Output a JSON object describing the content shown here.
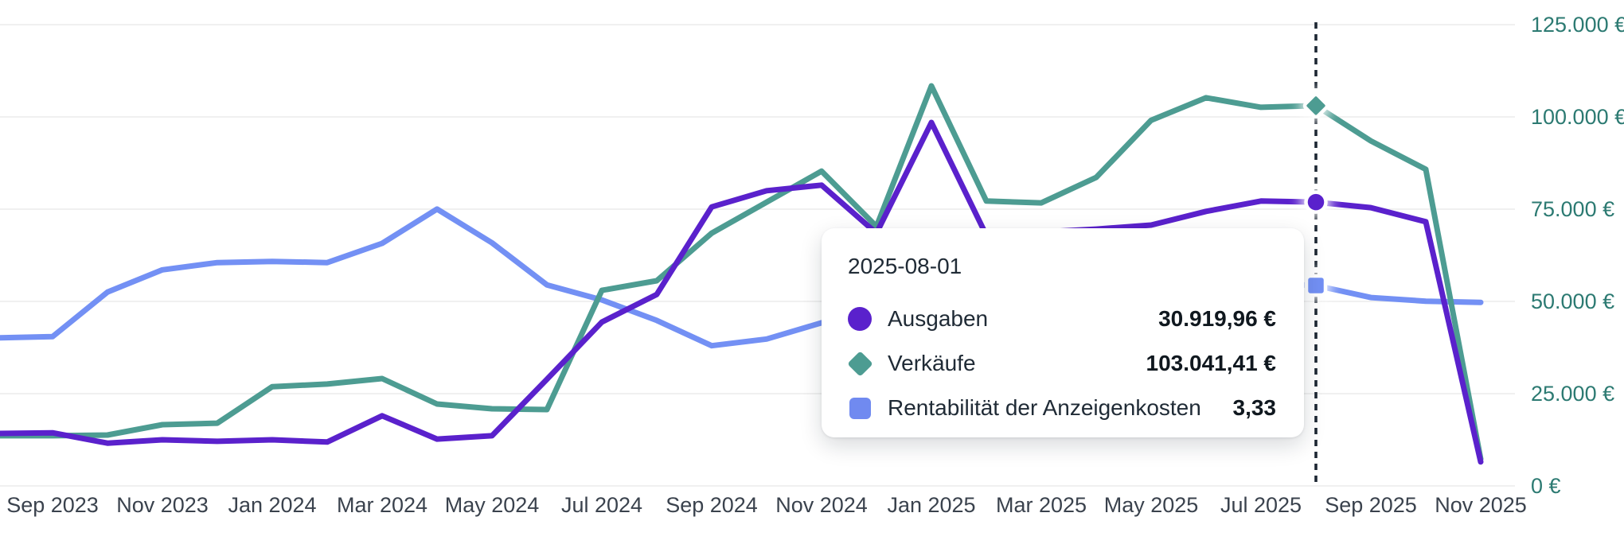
{
  "chart_data": {
    "type": "line",
    "title": "",
    "grid": "horizontal",
    "legend_position": "tooltip-only",
    "x_axis": {
      "months": [
        "2023-08",
        "2023-09",
        "2023-10",
        "2023-11",
        "2023-12",
        "2024-01",
        "2024-02",
        "2024-03",
        "2024-04",
        "2024-05",
        "2024-06",
        "2024-07",
        "2024-08",
        "2024-09",
        "2024-10",
        "2024-11",
        "2024-12",
        "2025-01",
        "2025-02",
        "2025-03",
        "2025-04",
        "2025-05",
        "2025-06",
        "2025-07",
        "2025-08",
        "2025-09",
        "2025-10",
        "2025-11"
      ],
      "tick_label_indices": [
        1,
        3,
        5,
        7,
        9,
        11,
        13,
        15,
        17,
        19,
        21,
        23,
        25,
        27
      ],
      "tick_labels": [
        "Sep 2023",
        "Nov 2023",
        "Jan 2024",
        "Mar 2024",
        "May 2024",
        "Jul 2024",
        "Sep 2024",
        "Nov 2024",
        "Jan 2025",
        "Mar 2025",
        "May 2025",
        "Jul 2025",
        "Sep 2025",
        "Nov 2025"
      ]
    },
    "y_axis": {
      "position": "right",
      "unit": "EUR",
      "tick_labels": [
        "0 €",
        "25.000 €",
        "50.000 €",
        "75.000 €",
        "100.000 €",
        "125.000 €"
      ],
      "tick_values": [
        0,
        25000,
        50000,
        75000,
        100000,
        125000
      ],
      "ylim": [
        0,
        131500
      ]
    },
    "series": [
      {
        "name": "Rentabilität der Anzeigenkosten",
        "color": "#7390f4",
        "marker": "square",
        "scale": "roas",
        "values": [
          2.46,
          2.48,
          3.22,
          3.59,
          3.71,
          3.73,
          3.71,
          4.03,
          4.6,
          4.04,
          3.34,
          3.09,
          2.75,
          2.33,
          2.44,
          2.71,
          2.95,
          3.18,
          3.29,
          3.34,
          3.37,
          3.38,
          3.38,
          3.37,
          3.33,
          3.13,
          3.07,
          3.05
        ]
      },
      {
        "name": "Verkäufe",
        "color": "#4d9c92",
        "marker": "diamond",
        "scale": "eur",
        "values": [
          13600,
          13600,
          13800,
          16600,
          17000,
          26900,
          27600,
          29100,
          22200,
          20900,
          20700,
          53000,
          55600,
          68500,
          76900,
          85300,
          70300,
          108400,
          77200,
          76700,
          83600,
          99100,
          105200,
          102600,
          103041,
          93500,
          85800,
          7300
        ]
      },
      {
        "name": "Ausgaben",
        "color": "#5a21cc",
        "marker": "circle",
        "scale": "eur",
        "note": "values are euro-axis-equivalent positions; tooltip shows its own scale value 30.919,96 €",
        "values": [
          14200,
          14400,
          11600,
          12500,
          12100,
          12500,
          11900,
          19000,
          12700,
          13600,
          28900,
          44400,
          51900,
          75600,
          80000,
          81500,
          68500,
          98500,
          67900,
          68800,
          69600,
          70700,
          74400,
          77200,
          76900,
          75400,
          71600,
          6500
        ]
      }
    ],
    "highlight": {
      "month": "2025-08",
      "index": 24,
      "rule_style": "dotted",
      "rule_color": "#1d2733"
    }
  },
  "tooltip": {
    "date": "2025-08-01",
    "rows": [
      {
        "label": "Ausgaben",
        "value": "30.919,96 €",
        "icon": "circle-icon",
        "color": "#5a21cc"
      },
      {
        "label": "Verkäufe",
        "value": "103.041,41 €",
        "icon": "diamond-icon",
        "color": "#4d9c92"
      },
      {
        "label": "Rentabilität der Anzeigenkosten",
        "value": "3,33",
        "icon": "square-icon",
        "color": "#708af0"
      }
    ]
  },
  "colors": {
    "background": "#ffffff",
    "gridline": "#ececec",
    "y_tick_text": "#2c7a72",
    "x_tick_text": "#3a424d",
    "rule": "#1d2733",
    "ausgaben": "#5a21cc",
    "verkaeufe": "#4d9c92",
    "rentabilitaet": "#7390f4"
  }
}
